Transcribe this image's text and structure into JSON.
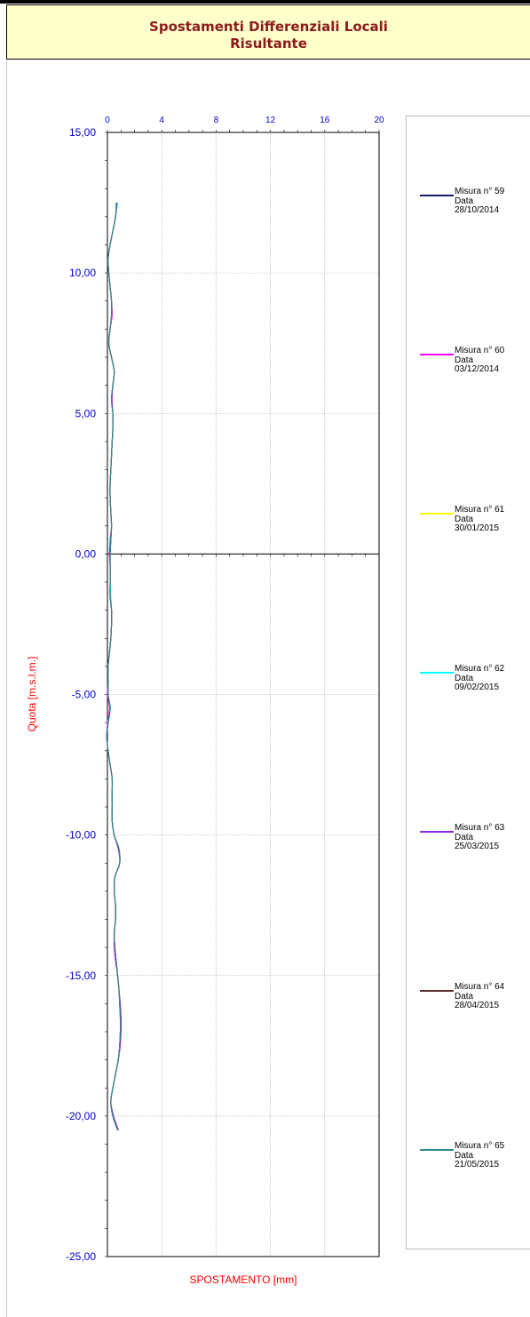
{
  "header": {
    "title_line1": "Spostamenti Differenziali Locali",
    "title_line2": "Risultante"
  },
  "colors": {
    "header_bg": "#ffffcc",
    "title": "#8b1a1a",
    "axis_text": "#0000cc",
    "axis_label": "#ff0000",
    "grid": "#a0a0a0"
  },
  "chart_data": {
    "type": "line",
    "xlabel": "SPOSTAMENTO [mm]",
    "ylabel": "Quota [m.s.l.m.]",
    "xlim": [
      0,
      20
    ],
    "ylim": [
      -25,
      15
    ],
    "x_ticks": [
      0,
      4,
      8,
      12,
      16,
      20
    ],
    "x_tick_labels": [
      "0",
      "4",
      "8",
      "12",
      "16",
      "20"
    ],
    "y_ticks": [
      15,
      10,
      5,
      0,
      -5,
      -10,
      -15,
      -20,
      -25
    ],
    "y_tick_labels": [
      "15,00",
      "10,00",
      "5,00",
      "0,00",
      "-5,00",
      "-10,00",
      "-15,00",
      "-20,00",
      "-25,00"
    ],
    "grid": true,
    "legend_position": "right",
    "depths": [
      12.5,
      12,
      11.5,
      11,
      10.5,
      10,
      9.5,
      9,
      8.5,
      8,
      7.5,
      7,
      6.5,
      6,
      5.5,
      5,
      4.5,
      4,
      3.5,
      3,
      2.5,
      2,
      1.5,
      1,
      0.5,
      0,
      -0.5,
      -1,
      -1.5,
      -2,
      -2.5,
      -3,
      -3.5,
      -4,
      -4.5,
      -5,
      -5.5,
      -6,
      -6.5,
      -7,
      -7.5,
      -8,
      -8.5,
      -9,
      -9.5,
      -10,
      -10.5,
      -11,
      -11.5,
      -12,
      -12.5,
      -13,
      -13.5,
      -14,
      -14.5,
      -15,
      -15.5,
      -16,
      -16.5,
      -17,
      -17.5,
      -18,
      -18.5,
      -19,
      -19.5,
      -20,
      -20.5
    ],
    "series": [
      {
        "label": "Misura n° 59",
        "date_label": "Data",
        "date": "28/10/2014",
        "color": "#1a1a6e",
        "values": [
          0.7,
          0.6,
          0.4,
          0.2,
          0.05,
          0.1,
          0.2,
          0.3,
          0.3,
          0.2,
          0.1,
          0.3,
          0.5,
          0.4,
          0.3,
          0.4,
          0.4,
          0.35,
          0.3,
          0.25,
          0.2,
          0.2,
          0.25,
          0.3,
          0.25,
          0.2,
          0.2,
          0.2,
          0.2,
          0.3,
          0.3,
          0.25,
          0.15,
          0.05,
          0.05,
          0.05,
          0.2,
          0.05,
          -0.05,
          0.05,
          0.2,
          0.35,
          0.35,
          0.35,
          0.35,
          0.5,
          0.85,
          0.9,
          0.55,
          0.5,
          0.6,
          0.6,
          0.5,
          0.55,
          0.65,
          0.75,
          0.85,
          0.9,
          0.95,
          0.95,
          0.9,
          0.8,
          0.6,
          0.4,
          0.25,
          0.4,
          0.75
        ]
      },
      {
        "label": "Misura n° 60",
        "date_label": "Data",
        "date": "03/12/2014",
        "color": "#ff00ff",
        "values": [
          0.7,
          0.6,
          0.4,
          0.2,
          0.05,
          0.1,
          0.2,
          0.3,
          0.35,
          0.2,
          0.1,
          0.3,
          0.5,
          0.4,
          0.35,
          0.4,
          0.4,
          0.35,
          0.3,
          0.25,
          0.2,
          0.2,
          0.25,
          0.3,
          0.2,
          0.15,
          0.2,
          0.2,
          0.2,
          0.3,
          0.3,
          0.25,
          0.15,
          0.05,
          0.05,
          0.0,
          0.15,
          0.0,
          -0.05,
          0.05,
          0.2,
          0.35,
          0.35,
          0.35,
          0.35,
          0.5,
          0.85,
          0.9,
          0.55,
          0.5,
          0.6,
          0.6,
          0.5,
          0.5,
          0.6,
          0.75,
          0.85,
          0.9,
          1.0,
          1.0,
          0.95,
          0.8,
          0.6,
          0.4,
          0.25,
          0.45,
          0.8
        ]
      },
      {
        "label": "Misura n° 61",
        "date_label": "Data",
        "date": "30/01/2015",
        "color": "#ffff00",
        "values": [
          0.7,
          0.6,
          0.4,
          0.2,
          0.05,
          0.1,
          0.2,
          0.3,
          0.3,
          0.2,
          0.1,
          0.3,
          0.5,
          0.4,
          0.3,
          0.4,
          0.4,
          0.35,
          0.3,
          0.25,
          0.2,
          0.2,
          0.25,
          0.3,
          0.25,
          0.2,
          0.2,
          0.2,
          0.2,
          0.3,
          0.3,
          0.25,
          0.15,
          0.05,
          0.05,
          0.05,
          0.2,
          0.05,
          -0.05,
          0.05,
          0.2,
          0.35,
          0.35,
          0.35,
          0.35,
          0.5,
          0.85,
          0.9,
          0.55,
          0.5,
          0.6,
          0.6,
          0.5,
          0.55,
          0.65,
          0.75,
          0.85,
          0.9,
          0.95,
          0.95,
          0.9,
          0.8,
          0.6,
          0.4,
          0.25,
          0.4,
          0.75
        ]
      },
      {
        "label": "Misura n° 62",
        "date_label": "Data",
        "date": "09/02/2015",
        "color": "#00ffff",
        "values": [
          0.75,
          0.6,
          0.4,
          0.2,
          0.05,
          0.1,
          0.2,
          0.3,
          0.3,
          0.2,
          0.1,
          0.3,
          0.5,
          0.4,
          0.3,
          0.4,
          0.4,
          0.35,
          0.3,
          0.25,
          0.2,
          0.2,
          0.25,
          0.3,
          0.25,
          0.2,
          0.2,
          0.2,
          0.25,
          0.3,
          0.3,
          0.25,
          0.15,
          0.05,
          0.05,
          0.05,
          0.2,
          0.05,
          -0.05,
          0.05,
          0.2,
          0.35,
          0.35,
          0.35,
          0.35,
          0.5,
          0.85,
          0.9,
          0.55,
          0.5,
          0.6,
          0.6,
          0.5,
          0.55,
          0.65,
          0.75,
          0.85,
          0.9,
          0.95,
          0.95,
          0.9,
          0.8,
          0.6,
          0.4,
          0.25,
          0.4,
          0.75
        ]
      },
      {
        "label": "Misura n° 63",
        "date_label": "Data",
        "date": "25/03/2015",
        "color": "#8a2be2",
        "values": [
          0.65,
          0.6,
          0.4,
          0.2,
          0.05,
          0.1,
          0.2,
          0.3,
          0.3,
          0.2,
          0.1,
          0.3,
          0.5,
          0.4,
          0.3,
          0.4,
          0.4,
          0.35,
          0.3,
          0.25,
          0.2,
          0.2,
          0.25,
          0.3,
          0.25,
          0.2,
          0.2,
          0.2,
          0.2,
          0.3,
          0.3,
          0.25,
          0.15,
          0.05,
          0.05,
          0.05,
          0.2,
          0.05,
          -0.05,
          0.05,
          0.2,
          0.35,
          0.35,
          0.35,
          0.35,
          0.5,
          0.8,
          0.9,
          0.55,
          0.5,
          0.6,
          0.6,
          0.5,
          0.55,
          0.65,
          0.75,
          0.85,
          0.95,
          1.0,
          1.0,
          0.9,
          0.8,
          0.6,
          0.4,
          0.25,
          0.45,
          0.8
        ]
      },
      {
        "label": "Misura n° 64",
        "date_label": "Data",
        "date": "28/04/2015",
        "color": "#5c2e2e",
        "values": [
          0.7,
          0.6,
          0.4,
          0.2,
          0.05,
          0.1,
          0.2,
          0.3,
          0.3,
          0.2,
          0.1,
          0.3,
          0.5,
          0.4,
          0.3,
          0.4,
          0.4,
          0.35,
          0.3,
          0.25,
          0.2,
          0.2,
          0.25,
          0.3,
          0.25,
          0.2,
          0.2,
          0.2,
          0.2,
          0.3,
          0.3,
          0.25,
          0.15,
          0.05,
          0.05,
          0.05,
          0.2,
          0.05,
          -0.05,
          0.05,
          0.2,
          0.35,
          0.35,
          0.35,
          0.35,
          0.5,
          0.85,
          0.9,
          0.55,
          0.5,
          0.6,
          0.6,
          0.5,
          0.55,
          0.65,
          0.75,
          0.85,
          0.9,
          0.95,
          0.95,
          0.9,
          0.8,
          0.6,
          0.4,
          0.25,
          0.4,
          0.75
        ]
      },
      {
        "label": "Misura n° 65",
        "date_label": "Data",
        "date": "21/05/2015",
        "color": "#2e8b8b",
        "values": [
          0.7,
          0.6,
          0.4,
          0.2,
          0.05,
          0.1,
          0.2,
          0.3,
          0.3,
          0.2,
          0.1,
          0.3,
          0.5,
          0.4,
          0.3,
          0.4,
          0.4,
          0.35,
          0.3,
          0.25,
          0.2,
          0.2,
          0.25,
          0.3,
          0.25,
          0.2,
          0.2,
          0.2,
          0.2,
          0.3,
          0.3,
          0.25,
          0.15,
          0.05,
          0.05,
          0.05,
          0.2,
          0.05,
          -0.05,
          0.05,
          0.2,
          0.35,
          0.35,
          0.35,
          0.35,
          0.5,
          0.85,
          0.9,
          0.55,
          0.5,
          0.6,
          0.6,
          0.5,
          0.55,
          0.65,
          0.75,
          0.85,
          0.9,
          0.95,
          0.95,
          0.9,
          0.8,
          0.6,
          0.4,
          0.25,
          0.4,
          0.75
        ]
      }
    ]
  }
}
